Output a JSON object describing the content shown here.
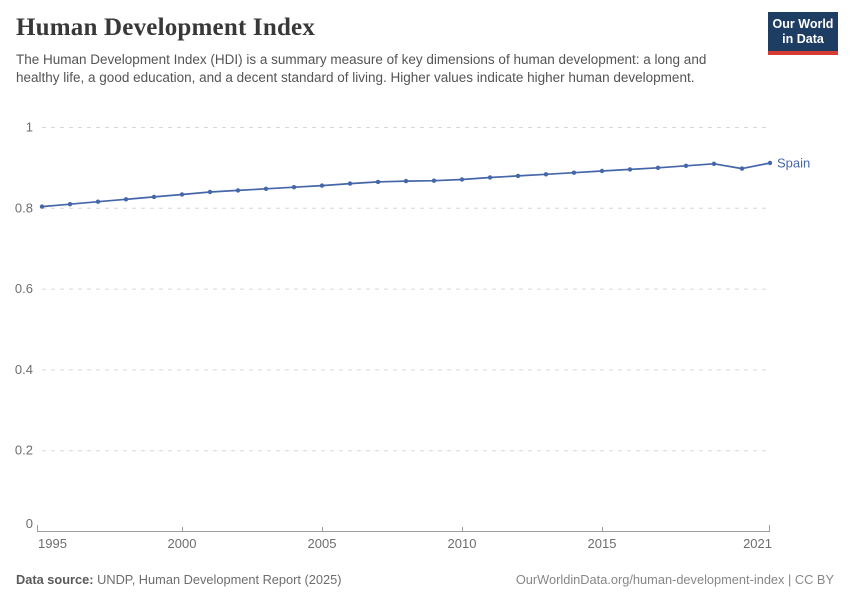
{
  "header": {
    "title": "Human Development Index",
    "subtitle": "The Human Development Index (HDI) is a summary measure of key dimensions of human development: a long and healthy life, a good education, and a decent standard of living. Higher values indicate higher human development.",
    "logo": {
      "line1": "Our World",
      "line2": "in Data",
      "bg_color": "#1d3d63",
      "accent_color": "#d73c34"
    }
  },
  "chart_data": {
    "type": "line",
    "title": "Human Development Index",
    "entity_label": "Spain",
    "xlim": [
      1995,
      2021
    ],
    "ylim": [
      0,
      1
    ],
    "grid": "horizontal-dashed",
    "legend_position": "end-of-line",
    "xticks": [
      1995,
      2000,
      2005,
      2010,
      2015,
      2021
    ],
    "yticks": [
      {
        "value": 0,
        "label": "0"
      },
      {
        "value": 0.2,
        "label": "0.2"
      },
      {
        "value": 0.4,
        "label": "0.4"
      },
      {
        "value": 0.6,
        "label": "0.6"
      },
      {
        "value": 0.8,
        "label": "0.8"
      },
      {
        "value": 1,
        "label": "1"
      }
    ],
    "series": [
      {
        "name": "Spain",
        "color": "#4566a8",
        "x": [
          1995,
          1996,
          1997,
          1998,
          1999,
          2000,
          2001,
          2002,
          2003,
          2004,
          2005,
          2006,
          2007,
          2008,
          2009,
          2010,
          2011,
          2012,
          2013,
          2014,
          2015,
          2016,
          2017,
          2018,
          2019,
          2020,
          2021
        ],
        "values": [
          0.803,
          0.809,
          0.815,
          0.821,
          0.827,
          0.833,
          0.839,
          0.843,
          0.847,
          0.851,
          0.855,
          0.86,
          0.864,
          0.866,
          0.867,
          0.87,
          0.875,
          0.879,
          0.883,
          0.887,
          0.891,
          0.895,
          0.899,
          0.904,
          0.909,
          0.897,
          0.911
        ]
      }
    ],
    "colors": {
      "gridline": "#d8d8d8",
      "axis": "#9e9e9e",
      "tick_label": "#6e6e6e"
    }
  },
  "footer": {
    "source_label": "Data source:",
    "source_text": " UNDP, Human Development Report (2025)",
    "link_text": "OurWorldinData.org/human-development-index | CC BY"
  }
}
